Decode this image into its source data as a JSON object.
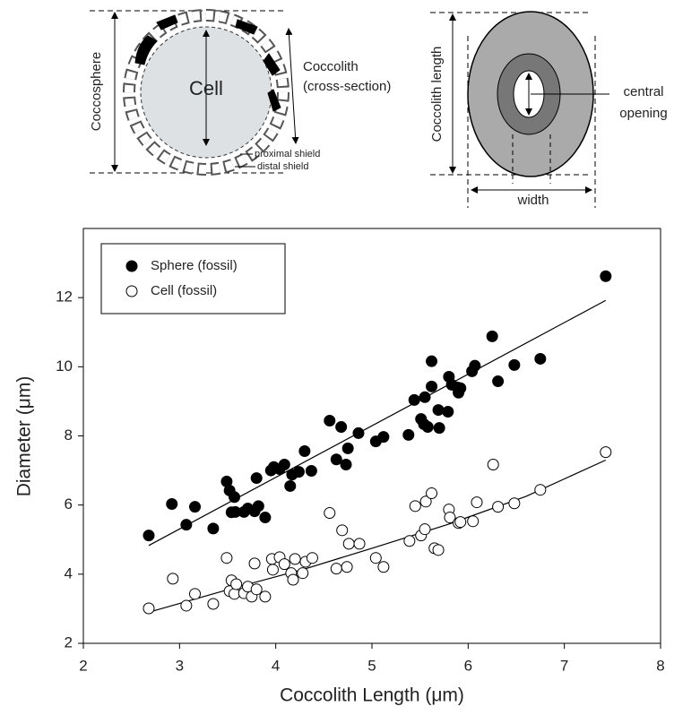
{
  "diagrams": {
    "coccosphere": "Coccosphere",
    "cell": "Cell",
    "coccolith_line1": "Coccolith",
    "coccolith_line2": "(cross-section)",
    "proximal": "proximal shield",
    "distal": "distal shield",
    "coccolith_length": "Coccolith length",
    "central_line1": "central",
    "central_line2": "opening",
    "width": "width"
  },
  "chart_data": {
    "type": "scatter",
    "xlabel": "Coccolith Length (μm)",
    "ylabel": "Diameter (μm)",
    "xlim": [
      2,
      8
    ],
    "xticks": [
      2,
      3,
      4,
      5,
      6,
      7,
      8
    ],
    "ylim": [
      2,
      14
    ],
    "yticks": [
      2,
      4,
      6,
      8,
      10,
      12
    ],
    "legend": "upper left",
    "series": [
      {
        "name": "Sphere (fossil)",
        "color": "#000000",
        "fill": "#000000",
        "x": [
          2.68,
          2.92,
          3.07,
          3.16,
          3.35,
          3.49,
          3.52,
          3.54,
          3.57,
          3.58,
          3.67,
          3.71,
          3.78,
          3.8,
          3.82,
          3.89,
          3.95,
          3.98,
          4.04,
          4.09,
          4.15,
          4.17,
          4.24,
          4.3,
          4.37,
          4.56,
          4.63,
          4.68,
          4.73,
          4.75,
          4.86,
          5.04,
          5.12,
          5.38,
          5.44,
          5.51,
          5.54,
          5.55,
          5.58,
          5.62,
          5.62,
          5.69,
          5.7,
          5.79,
          5.8,
          5.83,
          5.89,
          5.9,
          5.92,
          6.04,
          6.07,
          6.25,
          6.31,
          6.48,
          6.75,
          7.43
        ],
        "values": [
          5.12,
          6.03,
          5.43,
          5.95,
          5.32,
          6.68,
          6.42,
          5.79,
          6.23,
          5.8,
          5.8,
          5.9,
          5.82,
          6.78,
          5.97,
          5.64,
          7.0,
          7.1,
          7.04,
          7.17,
          6.55,
          6.88,
          6.96,
          7.56,
          6.99,
          8.44,
          7.32,
          8.26,
          7.17,
          7.64,
          8.08,
          7.84,
          7.97,
          8.03,
          9.04,
          8.49,
          8.34,
          9.12,
          8.26,
          9.43,
          10.16,
          8.75,
          8.23,
          8.7,
          9.71,
          9.48,
          9.4,
          9.25,
          9.38,
          9.87,
          10.03,
          10.88,
          9.58,
          10.05,
          10.23,
          12.62
        ]
      },
      {
        "name": "Cell (fossil)",
        "color": "#000000",
        "fill": "#ffffff",
        "x": [
          2.68,
          2.93,
          3.07,
          3.16,
          3.35,
          3.49,
          3.52,
          3.54,
          3.57,
          3.59,
          3.67,
          3.71,
          3.75,
          3.78,
          3.8,
          3.89,
          3.96,
          3.97,
          4.04,
          4.09,
          4.16,
          4.18,
          4.2,
          4.28,
          4.31,
          4.38,
          4.56,
          4.63,
          4.69,
          4.74,
          4.76,
          4.87,
          5.04,
          5.12,
          5.39,
          5.45,
          5.51,
          5.55,
          5.56,
          5.62,
          5.65,
          5.69,
          5.8,
          5.81,
          5.9,
          5.92,
          6.05,
          6.09,
          6.26,
          6.31,
          6.48,
          6.75,
          7.43
        ],
        "values": [
          3.01,
          3.87,
          3.09,
          3.43,
          3.14,
          4.47,
          3.51,
          3.82,
          3.43,
          3.71,
          3.45,
          3.64,
          3.35,
          4.31,
          3.56,
          3.35,
          4.44,
          4.13,
          4.49,
          4.29,
          4.03,
          3.84,
          4.44,
          4.03,
          4.36,
          4.47,
          5.77,
          4.16,
          5.27,
          4.21,
          4.88,
          4.88,
          4.47,
          4.21,
          4.96,
          5.97,
          5.12,
          5.3,
          6.1,
          6.34,
          4.75,
          4.7,
          5.87,
          5.64,
          5.48,
          5.51,
          5.53,
          6.08,
          7.17,
          5.95,
          6.05,
          6.44,
          7.53
        ]
      }
    ],
    "fit_lines": [
      {
        "color": "#000000",
        "x": [
          2.68,
          7.43
        ],
        "values": [
          4.83,
          11.92
        ]
      },
      {
        "color": "#000000",
        "x": [
          2.68,
          3.5,
          4.3,
          5.0,
          5.8,
          6.6,
          7.43
        ],
        "values": [
          2.9,
          3.55,
          4.15,
          4.75,
          5.45,
          6.25,
          7.3
        ]
      }
    ]
  }
}
